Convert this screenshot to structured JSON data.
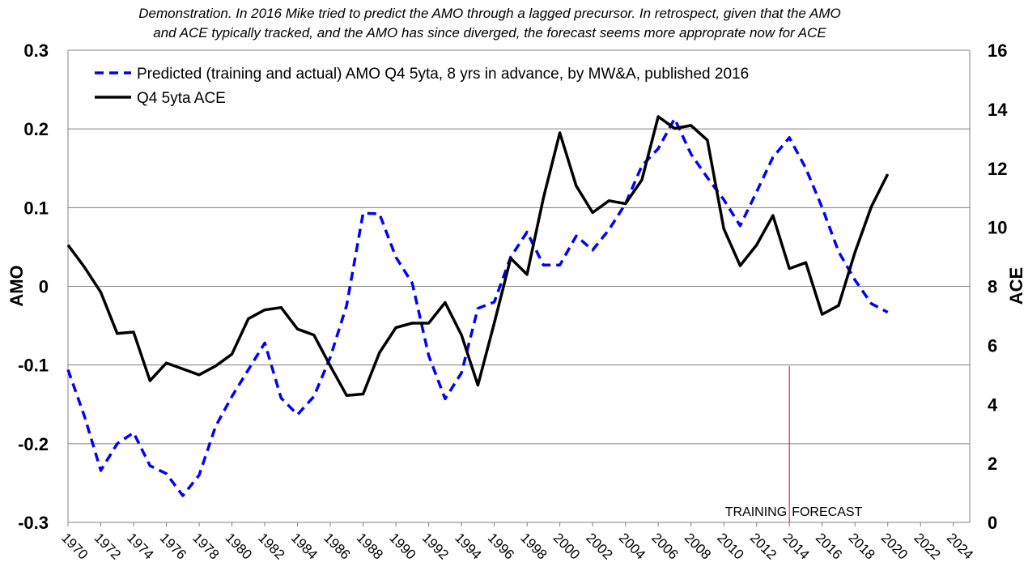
{
  "chart_data": {
    "type": "line",
    "title_lines": [
      "Demonstration.  In 2016 Mike tried to predict the AMO through  a lagged precursor.  In retrospect, given that the AMO",
      "and ACE typically tracked, and the AMO has since diverged, the forecast seems more approprate  now for ACE"
    ],
    "y_left_label": "AMO",
    "y_right_label": "ACE",
    "y_left_lim": [
      -0.3,
      0.3
    ],
    "y_left_ticks": [
      -0.3,
      -0.2,
      -0.1,
      0,
      0.1,
      0.2,
      0.3
    ],
    "y_left_tick_labels": [
      "-0.3",
      "-0.2",
      "-0.1",
      "0",
      "0.1",
      "0.2",
      "0.3"
    ],
    "y_right_lim": [
      0,
      16
    ],
    "y_right_ticks": [
      0,
      2,
      4,
      6,
      8,
      10,
      12,
      14,
      16
    ],
    "y_right_tick_labels": [
      "0",
      "2",
      "4",
      "6",
      "8",
      "10",
      "12",
      "14",
      "16"
    ],
    "x_lim": [
      1970,
      2025
    ],
    "x_tick_labels": [
      "1970",
      "1972",
      "1974",
      "1976",
      "1978",
      "1980",
      "1982",
      "1984",
      "1986",
      "1988",
      "1990",
      "1992",
      "1994",
      "1996",
      "1998",
      "2000",
      "2002",
      "2004",
      "2006",
      "2008",
      "2010",
      "2012",
      "2014",
      "2016",
      "2018",
      "2020",
      "2022",
      "2024"
    ],
    "grid": "horizontal",
    "legend_position": "top-left",
    "series": [
      {
        "name": "Predicted (training and actual) AMO Q4 5yta, 8 yrs in advance, by MW&A, published 2016",
        "axis": "left",
        "style": "dashed",
        "color": "#0000ff",
        "x": [
          1970,
          1971,
          1972,
          1973,
          1974,
          1975,
          1976,
          1977,
          1978,
          1979,
          1980,
          1981,
          1982,
          1983,
          1984,
          1985,
          1986,
          1987,
          1988,
          1989,
          1990,
          1991,
          1992,
          1993,
          1994,
          1995,
          1996,
          1997,
          1998,
          1999,
          2000,
          2001,
          2002,
          2003,
          2004,
          2005,
          2006,
          2007,
          2008,
          2009,
          2010,
          2011,
          2012,
          2013,
          2014,
          2015,
          2016,
          2017,
          2018,
          2019,
          2020
        ],
        "y": [
          -0.106,
          -0.165,
          -0.234,
          -0.2,
          -0.186,
          -0.228,
          -0.238,
          -0.266,
          -0.24,
          -0.178,
          -0.14,
          -0.106,
          -0.072,
          -0.142,
          -0.163,
          -0.14,
          -0.09,
          -0.024,
          0.093,
          0.092,
          0.037,
          0.004,
          -0.088,
          -0.143,
          -0.11,
          -0.028,
          -0.02,
          0.037,
          0.069,
          0.027,
          0.027,
          0.064,
          0.046,
          0.072,
          0.105,
          0.153,
          0.175,
          0.213,
          0.168,
          0.138,
          0.11,
          0.077,
          0.12,
          0.164,
          0.189,
          0.15,
          0.1,
          0.044,
          0.008,
          -0.022,
          -0.033
        ]
      },
      {
        "name": "Q4 5yta ACE",
        "axis": "right",
        "style": "solid",
        "color": "#000000",
        "x": [
          1970,
          1971,
          1972,
          1973,
          1974,
          1975,
          1976,
          1977,
          1978,
          1979,
          1980,
          1981,
          1982,
          1983,
          1984,
          1985,
          1986,
          1987,
          1988,
          1989,
          1990,
          1991,
          1992,
          1993,
          1994,
          1995,
          1996,
          1997,
          1998,
          1999,
          2000,
          2001,
          2002,
          2003,
          2004,
          2005,
          2006,
          2007,
          2008,
          2009,
          2010,
          2011,
          2012,
          2013,
          2014,
          2015,
          2016,
          2017,
          2018,
          2019,
          2020
        ],
        "y": [
          9.4,
          8.65,
          7.8,
          6.4,
          6.45,
          4.8,
          5.4,
          5.2,
          5.0,
          5.3,
          5.7,
          6.9,
          7.2,
          7.28,
          6.55,
          6.35,
          5.3,
          4.3,
          4.35,
          5.75,
          6.6,
          6.75,
          6.75,
          7.45,
          6.35,
          4.65,
          6.75,
          8.95,
          8.4,
          11.0,
          13.2,
          11.4,
          10.5,
          10.9,
          10.8,
          11.6,
          13.75,
          13.35,
          13.45,
          12.95,
          9.95,
          8.7,
          9.4,
          10.4,
          8.6,
          8.8,
          7.05,
          7.35,
          9.15,
          10.7,
          11.8
        ]
      }
    ],
    "annotations": [
      {
        "text": "TRAINING",
        "x": 2014,
        "y": 0.5,
        "axis": "right",
        "align": "right"
      },
      {
        "text": "FORECAST",
        "x": 2014,
        "y": 0.5,
        "axis": "right",
        "align": "left"
      }
    ],
    "marker_line": {
      "x": 2014,
      "y_from": 0,
      "y_to": 5.3,
      "axis": "right",
      "color": "#ff0000"
    }
  }
}
